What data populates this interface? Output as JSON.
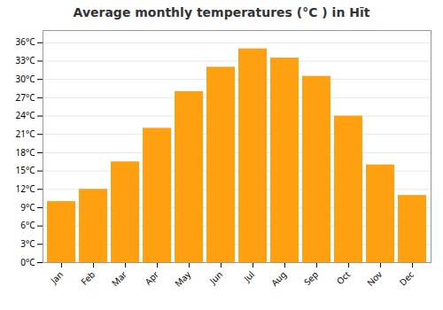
{
  "chart_data": {
    "type": "bar",
    "title": "Average monthly temperatures (°C ) in Hīt",
    "categories": [
      "Jan",
      "Feb",
      "Mar",
      "Apr",
      "May",
      "Jun",
      "Jul",
      "Aug",
      "Sep",
      "Oct",
      "Nov",
      "Dec"
    ],
    "values": [
      10,
      12,
      16.5,
      22,
      28,
      32,
      35,
      33.5,
      30.5,
      24,
      16,
      11
    ],
    "color": "#FFA010",
    "ylim": [
      0,
      38
    ],
    "yticks": [
      {
        "value": 0,
        "label": "0°C"
      },
      {
        "value": 3,
        "label": "3°C"
      },
      {
        "value": 6,
        "label": "6°C"
      },
      {
        "value": 9,
        "label": "9°C"
      },
      {
        "value": 12,
        "label": "12°C"
      },
      {
        "value": 15,
        "label": "15°C"
      },
      {
        "value": 18,
        "label": "18°C"
      },
      {
        "value": 21,
        "label": "21°C"
      },
      {
        "value": 24,
        "label": "24°C"
      },
      {
        "value": 27,
        "label": "27°C"
      },
      {
        "value": 30,
        "label": "30°C"
      },
      {
        "value": 33,
        "label": "33°C"
      },
      {
        "value": 36,
        "label": "36°C"
      }
    ],
    "grid": true
  }
}
